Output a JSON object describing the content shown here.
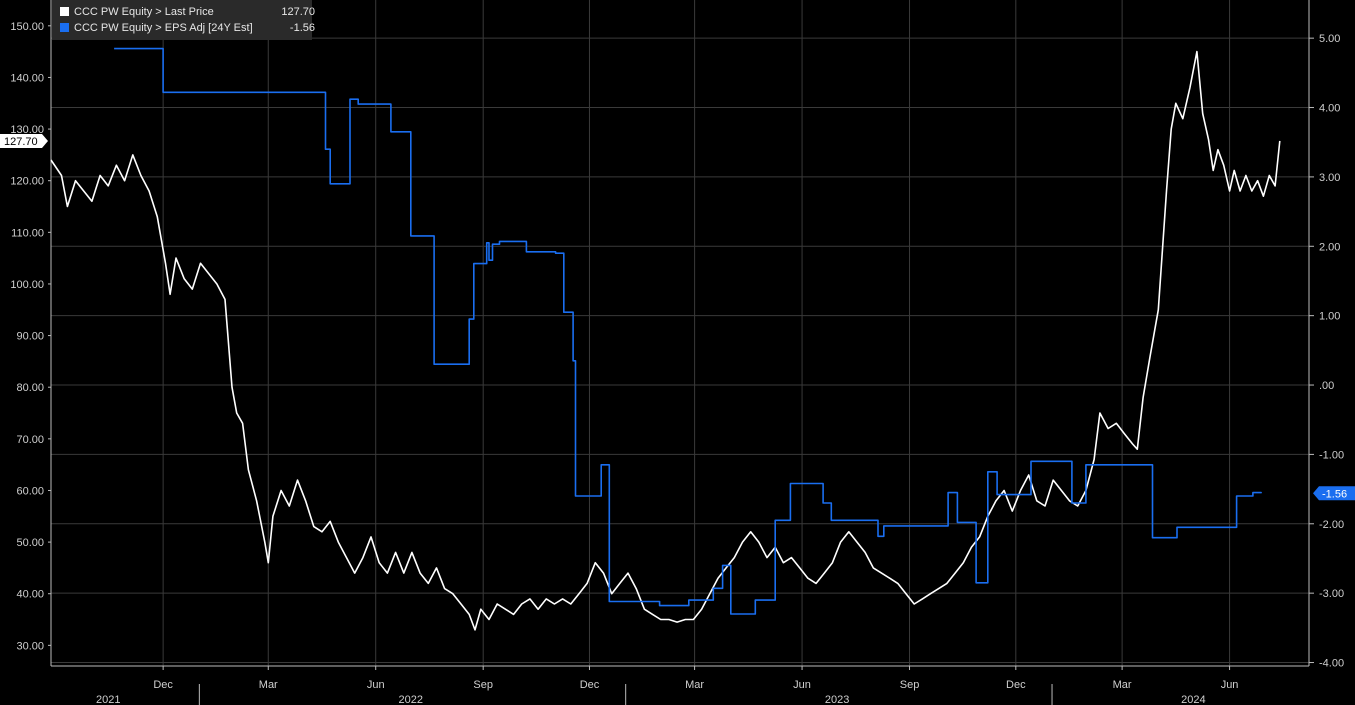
{
  "legend": [
    {
      "label": "CCC PW Equity > Last Price",
      "value": "127.70",
      "color": "#ffffff"
    },
    {
      "label": "CCC PW Equity > EPS Adj [24Y Est]",
      "value": "-1.56",
      "color": "#1a6ef0"
    }
  ],
  "badges": {
    "left": "127.70",
    "right": "-1.56"
  },
  "chart_data": {
    "type": "line",
    "x_range": [
      "2021-08-27",
      "2024-08-08"
    ],
    "y_left": {
      "min": 26,
      "max": 155,
      "ticks": [
        "150.00",
        "140.00",
        "130.00",
        "120.00",
        "110.00",
        "100.00",
        "90.00",
        "80.00",
        "70.00",
        "60.00",
        "50.00",
        "40.00",
        "30.00"
      ]
    },
    "y_right": {
      "min": -4.05,
      "max": 5.55,
      "ticks": [
        "5.00",
        "4.00",
        "3.00",
        "2.00",
        "1.00",
        ".00",
        "-1.00",
        "-2.00",
        "-3.00",
        "-4.00"
      ]
    },
    "x_month_labels": [
      {
        "date": "2021-12-01",
        "label": "Dec"
      },
      {
        "date": "2022-03-01",
        "label": "Mar"
      },
      {
        "date": "2022-06-01",
        "label": "Jun"
      },
      {
        "date": "2022-09-01",
        "label": "Sep"
      },
      {
        "date": "2022-12-01",
        "label": "Dec"
      },
      {
        "date": "2023-03-01",
        "label": "Mar"
      },
      {
        "date": "2023-06-01",
        "label": "Jun"
      },
      {
        "date": "2023-09-01",
        "label": "Sep"
      },
      {
        "date": "2023-12-01",
        "label": "Dec"
      },
      {
        "date": "2024-03-01",
        "label": "Mar"
      },
      {
        "date": "2024-06-01",
        "label": "Jun"
      }
    ],
    "x_year_labels": [
      {
        "date": "2021-10-15",
        "label": "2021"
      },
      {
        "date": "2022-07-01",
        "label": "2022"
      },
      {
        "date": "2023-07-01",
        "label": "2023"
      },
      {
        "date": "2024-05-01",
        "label": "2024"
      }
    ],
    "year_boundaries": [
      "2022-01-01",
      "2023-01-01",
      "2024-01-01"
    ],
    "series": [
      {
        "name": "CCC PW Equity > Last Price",
        "axis": "left",
        "color": "#ffffff",
        "step": false,
        "points": [
          [
            "2021-08-27",
            124
          ],
          [
            "2021-09-05",
            121
          ],
          [
            "2021-09-10",
            115
          ],
          [
            "2021-09-17",
            120
          ],
          [
            "2021-09-24",
            118
          ],
          [
            "2021-10-01",
            116
          ],
          [
            "2021-10-08",
            121
          ],
          [
            "2021-10-15",
            119
          ],
          [
            "2021-10-22",
            123
          ],
          [
            "2021-10-29",
            120
          ],
          [
            "2021-11-05",
            125
          ],
          [
            "2021-11-12",
            121
          ],
          [
            "2021-11-19",
            118
          ],
          [
            "2021-11-26",
            113
          ],
          [
            "2021-12-03",
            104
          ],
          [
            "2021-12-07",
            98
          ],
          [
            "2021-12-12",
            105
          ],
          [
            "2021-12-19",
            101
          ],
          [
            "2021-12-26",
            99
          ],
          [
            "2022-01-02",
            104
          ],
          [
            "2022-01-09",
            102
          ],
          [
            "2022-01-16",
            100
          ],
          [
            "2022-01-23",
            97
          ],
          [
            "2022-01-29",
            80
          ],
          [
            "2022-02-02",
            75
          ],
          [
            "2022-02-07",
            73
          ],
          [
            "2022-02-12",
            64
          ],
          [
            "2022-02-19",
            58
          ],
          [
            "2022-02-26",
            50
          ],
          [
            "2022-03-01",
            46
          ],
          [
            "2022-03-05",
            55
          ],
          [
            "2022-03-12",
            60
          ],
          [
            "2022-03-19",
            57
          ],
          [
            "2022-03-26",
            62
          ],
          [
            "2022-04-02",
            58
          ],
          [
            "2022-04-09",
            53
          ],
          [
            "2022-04-16",
            52
          ],
          [
            "2022-04-23",
            54
          ],
          [
            "2022-04-30",
            50
          ],
          [
            "2022-05-07",
            47
          ],
          [
            "2022-05-14",
            44
          ],
          [
            "2022-05-21",
            47
          ],
          [
            "2022-05-28",
            51
          ],
          [
            "2022-06-04",
            46
          ],
          [
            "2022-06-11",
            44
          ],
          [
            "2022-06-18",
            48
          ],
          [
            "2022-06-25",
            44
          ],
          [
            "2022-07-02",
            48
          ],
          [
            "2022-07-09",
            44
          ],
          [
            "2022-07-16",
            42
          ],
          [
            "2022-07-23",
            45
          ],
          [
            "2022-07-30",
            41
          ],
          [
            "2022-08-06",
            40
          ],
          [
            "2022-08-13",
            38
          ],
          [
            "2022-08-20",
            36
          ],
          [
            "2022-08-25",
            33
          ],
          [
            "2022-08-30",
            37
          ],
          [
            "2022-09-06",
            35
          ],
          [
            "2022-09-13",
            38
          ],
          [
            "2022-09-20",
            37
          ],
          [
            "2022-09-27",
            36
          ],
          [
            "2022-10-04",
            38
          ],
          [
            "2022-10-11",
            39
          ],
          [
            "2022-10-18",
            37
          ],
          [
            "2022-10-25",
            39
          ],
          [
            "2022-11-01",
            38
          ],
          [
            "2022-11-08",
            39
          ],
          [
            "2022-11-15",
            38
          ],
          [
            "2022-11-22",
            40
          ],
          [
            "2022-11-29",
            42
          ],
          [
            "2022-12-06",
            46
          ],
          [
            "2022-12-13",
            44
          ],
          [
            "2022-12-20",
            40
          ],
          [
            "2022-12-27",
            42
          ],
          [
            "2023-01-03",
            44
          ],
          [
            "2023-01-10",
            41
          ],
          [
            "2023-01-17",
            37
          ],
          [
            "2023-01-24",
            36
          ],
          [
            "2023-01-31",
            35
          ],
          [
            "2023-02-07",
            35
          ],
          [
            "2023-02-14",
            34.5
          ],
          [
            "2023-02-21",
            35
          ],
          [
            "2023-02-28",
            35
          ],
          [
            "2023-03-07",
            37
          ],
          [
            "2023-03-14",
            40
          ],
          [
            "2023-03-21",
            43
          ],
          [
            "2023-03-28",
            45
          ],
          [
            "2023-04-04",
            47
          ],
          [
            "2023-04-11",
            50
          ],
          [
            "2023-04-18",
            52
          ],
          [
            "2023-04-25",
            50
          ],
          [
            "2023-05-02",
            47
          ],
          [
            "2023-05-09",
            49
          ],
          [
            "2023-05-16",
            46
          ],
          [
            "2023-05-23",
            47
          ],
          [
            "2023-05-30",
            45
          ],
          [
            "2023-06-06",
            43
          ],
          [
            "2023-06-13",
            42
          ],
          [
            "2023-06-20",
            44
          ],
          [
            "2023-06-27",
            46
          ],
          [
            "2023-07-04",
            50
          ],
          [
            "2023-07-11",
            52
          ],
          [
            "2023-07-18",
            50
          ],
          [
            "2023-07-25",
            48
          ],
          [
            "2023-08-01",
            45
          ],
          [
            "2023-08-08",
            44
          ],
          [
            "2023-08-15",
            43
          ],
          [
            "2023-08-22",
            42
          ],
          [
            "2023-08-29",
            40
          ],
          [
            "2023-09-05",
            38
          ],
          [
            "2023-09-12",
            39
          ],
          [
            "2023-09-19",
            40
          ],
          [
            "2023-09-26",
            41
          ],
          [
            "2023-10-03",
            42
          ],
          [
            "2023-10-10",
            44
          ],
          [
            "2023-10-17",
            46
          ],
          [
            "2023-10-24",
            49
          ],
          [
            "2023-10-31",
            51
          ],
          [
            "2023-11-07",
            55
          ],
          [
            "2023-11-14",
            58
          ],
          [
            "2023-11-21",
            60
          ],
          [
            "2023-11-28",
            56
          ],
          [
            "2023-12-05",
            60
          ],
          [
            "2023-12-12",
            63
          ],
          [
            "2023-12-19",
            58
          ],
          [
            "2023-12-26",
            57
          ],
          [
            "2024-01-02",
            62
          ],
          [
            "2024-01-09",
            60
          ],
          [
            "2024-01-16",
            58
          ],
          [
            "2024-01-23",
            57
          ],
          [
            "2024-01-30",
            60
          ],
          [
            "2024-02-06",
            66
          ],
          [
            "2024-02-11",
            75
          ],
          [
            "2024-02-18",
            72
          ],
          [
            "2024-02-25",
            73
          ],
          [
            "2024-03-03",
            71
          ],
          [
            "2024-03-10",
            69
          ],
          [
            "2024-03-14",
            68
          ],
          [
            "2024-03-19",
            78
          ],
          [
            "2024-03-25",
            86
          ],
          [
            "2024-04-01",
            95
          ],
          [
            "2024-04-08",
            118
          ],
          [
            "2024-04-12",
            130
          ],
          [
            "2024-04-16",
            135
          ],
          [
            "2024-04-22",
            132
          ],
          [
            "2024-04-28",
            138
          ],
          [
            "2024-05-04",
            145
          ],
          [
            "2024-05-09",
            133
          ],
          [
            "2024-05-14",
            128
          ],
          [
            "2024-05-18",
            122
          ],
          [
            "2024-05-22",
            126
          ],
          [
            "2024-05-27",
            123
          ],
          [
            "2024-06-01",
            118
          ],
          [
            "2024-06-05",
            122
          ],
          [
            "2024-06-10",
            118
          ],
          [
            "2024-06-15",
            121
          ],
          [
            "2024-06-20",
            118
          ],
          [
            "2024-06-25",
            120
          ],
          [
            "2024-06-30",
            117
          ],
          [
            "2024-07-05",
            121
          ],
          [
            "2024-07-10",
            119
          ],
          [
            "2024-07-14",
            127.7
          ]
        ]
      },
      {
        "name": "CCC PW Equity > EPS Adj [24Y Est]",
        "axis": "right",
        "color": "#1a6ef0",
        "step": true,
        "points": [
          [
            "2021-10-20",
            4.85
          ],
          [
            "2021-12-01",
            4.22
          ],
          [
            "2022-04-19",
            3.4
          ],
          [
            "2022-04-23",
            2.9
          ],
          [
            "2022-05-10",
            4.12
          ],
          [
            "2022-05-17",
            4.05
          ],
          [
            "2022-06-14",
            3.65
          ],
          [
            "2022-07-01",
            2.15
          ],
          [
            "2022-07-21",
            0.3
          ],
          [
            "2022-08-20",
            0.95
          ],
          [
            "2022-08-24",
            1.75
          ],
          [
            "2022-09-04",
            2.05
          ],
          [
            "2022-09-06",
            1.8
          ],
          [
            "2022-09-09",
            2.03
          ],
          [
            "2022-09-15",
            2.07
          ],
          [
            "2022-10-08",
            1.92
          ],
          [
            "2022-11-02",
            1.9
          ],
          [
            "2022-11-09",
            1.05
          ],
          [
            "2022-11-17",
            0.35
          ],
          [
            "2022-11-19",
            -1.6
          ],
          [
            "2022-12-11",
            -1.15
          ],
          [
            "2022-12-18",
            -3.12
          ],
          [
            "2023-01-30",
            -3.18
          ],
          [
            "2023-02-24",
            -3.1
          ],
          [
            "2023-03-17",
            -2.93
          ],
          [
            "2023-03-25",
            -2.6
          ],
          [
            "2023-04-01",
            -3.3
          ],
          [
            "2023-04-22",
            -3.1
          ],
          [
            "2023-05-09",
            -1.95
          ],
          [
            "2023-05-22",
            -1.42
          ],
          [
            "2023-06-19",
            -1.7
          ],
          [
            "2023-06-26",
            -1.95
          ],
          [
            "2023-08-05",
            -2.18
          ],
          [
            "2023-08-10",
            -2.03
          ],
          [
            "2023-10-04",
            -1.55
          ],
          [
            "2023-10-12",
            -1.98
          ],
          [
            "2023-10-28",
            -2.85
          ],
          [
            "2023-11-07",
            -1.25
          ],
          [
            "2023-11-15",
            -1.58
          ],
          [
            "2023-12-14",
            -1.1
          ],
          [
            "2024-01-18",
            -1.7
          ],
          [
            "2024-01-30",
            -1.15
          ],
          [
            "2024-03-27",
            -2.2
          ],
          [
            "2024-04-17",
            -2.05
          ],
          [
            "2024-06-07",
            -1.6
          ],
          [
            "2024-06-21",
            -1.55
          ],
          [
            "2024-06-28",
            -1.56
          ]
        ]
      }
    ]
  }
}
